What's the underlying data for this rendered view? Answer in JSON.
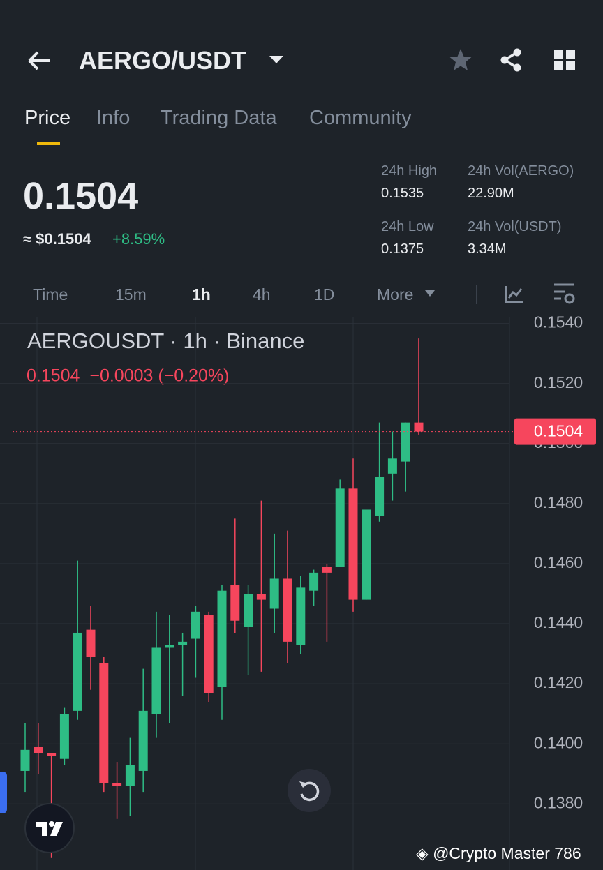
{
  "header": {
    "pair": "AERGO/USDT"
  },
  "tabs": [
    "Price",
    "Info",
    "Trading Data",
    "Community"
  ],
  "price": {
    "last": "0.1504",
    "fiat": "≈ $0.1504",
    "change": "+8.59%"
  },
  "stats": [
    {
      "label": "24h High",
      "value": "0.1535"
    },
    {
      "label": "24h Vol(AERGO)",
      "value": "22.90M"
    },
    {
      "label": "24h Low",
      "value": "0.1375"
    },
    {
      "label": "24h Vol(USDT)",
      "value": "3.34M"
    }
  ],
  "intervals": [
    "Time",
    "15m",
    "1h",
    "4h",
    "1D",
    "More"
  ],
  "chart_data": {
    "type": "candlestick",
    "title": "AERGOUSDT · 1h · Binance",
    "subtitle": "0.1504  −0.0003 (−0.20%)",
    "up_color": "#2ebd85",
    "down_color": "#f6465d",
    "open": [
      0.1391,
      0.1399,
      0.1397,
      0.1395,
      0.1411,
      0.1438,
      0.1427,
      0.1387,
      0.1386,
      0.1391,
      0.141,
      0.1432,
      0.1433,
      0.1435,
      0.1443,
      0.1419,
      0.1453,
      0.1439,
      0.145,
      0.1445,
      0.1455,
      0.1433,
      0.1451,
      0.1459,
      0.1459,
      0.1485,
      0.1448,
      0.1476,
      0.149,
      0.1494,
      0.1507
    ],
    "high": [
      0.1407,
      0.1407,
      0.1397,
      0.1412,
      0.1461,
      0.1446,
      0.1429,
      0.1394,
      0.1402,
      0.1425,
      0.1444,
      0.1443,
      0.1437,
      0.1446,
      0.1444,
      0.1453,
      0.1475,
      0.1453,
      0.1481,
      0.147,
      0.1471,
      0.1456,
      0.1458,
      0.146,
      0.1488,
      0.1495,
      0.1478,
      0.1507,
      0.1504,
      0.1507,
      0.1535
    ],
    "low": [
      0.1384,
      0.139,
      0.1362,
      0.1393,
      0.1408,
      0.1418,
      0.1384,
      0.1375,
      0.1376,
      0.1384,
      0.1402,
      0.1407,
      0.1416,
      0.1422,
      0.1414,
      0.1408,
      0.1437,
      0.1423,
      0.1424,
      0.1437,
      0.1427,
      0.143,
      0.1446,
      0.1434,
      0.1459,
      0.1444,
      0.1448,
      0.1474,
      0.1481,
      0.1484,
      0.1503
    ],
    "close": [
      0.1398,
      0.1397,
      0.1396,
      0.141,
      0.1437,
      0.1429,
      0.1387,
      0.1386,
      0.1393,
      0.1411,
      0.1432,
      0.1433,
      0.1434,
      0.1444,
      0.1417,
      0.1451,
      0.1441,
      0.145,
      0.1448,
      0.1455,
      0.1434,
      0.1452,
      0.1457,
      0.1457,
      0.1485,
      0.1448,
      0.1478,
      0.1489,
      0.1495,
      0.1507,
      0.1504
    ],
    "ylim": [
      0.1358,
      0.1542
    ],
    "yticks": [
      {
        "value": 0.154,
        "label": "0.1540"
      },
      {
        "value": 0.152,
        "label": "0.1520"
      },
      {
        "value": 0.15,
        "label": "0.1500"
      },
      {
        "value": 0.148,
        "label": "0.1480"
      },
      {
        "value": 0.146,
        "label": "0.1460"
      },
      {
        "value": 0.144,
        "label": "0.1440"
      },
      {
        "value": 0.142,
        "label": "0.1420"
      },
      {
        "value": 0.14,
        "label": "0.1400"
      },
      {
        "value": 0.138,
        "label": "0.1380"
      }
    ],
    "grid": true,
    "last_price": 0.1504,
    "last_price_label": "0.1504"
  },
  "watermark": "@Crypto Master 786"
}
